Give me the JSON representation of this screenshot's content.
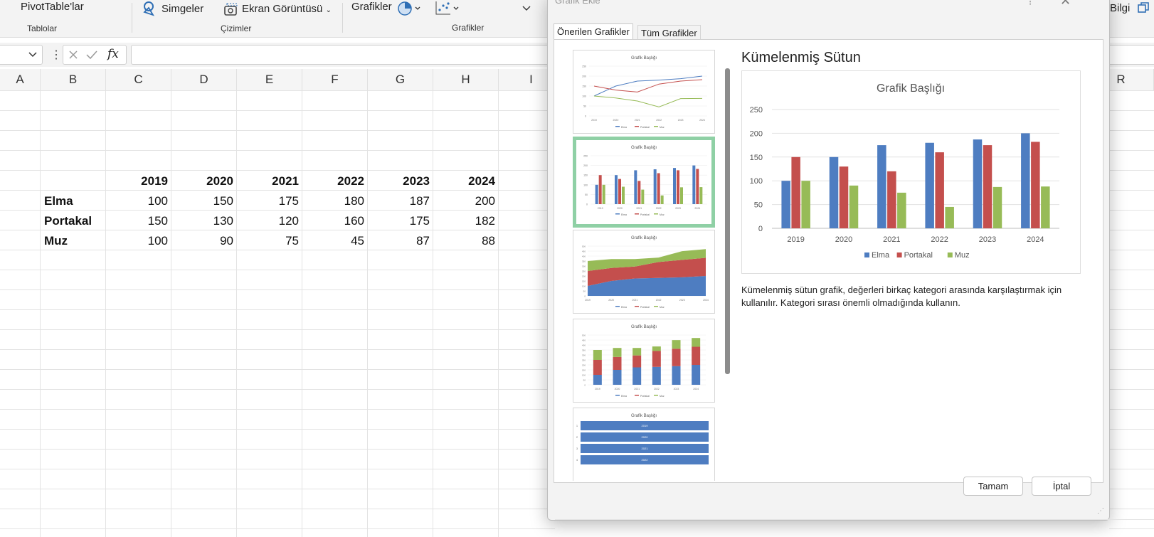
{
  "ribbon": {
    "pivot_label": "PivotTable'lar",
    "tables_group": "Tablolar",
    "icons_label": "Simgeler",
    "screenshot_label": "Ekran Görüntüsü",
    "drawings_group": "Çizimler",
    "charts_label": "Grafikler",
    "charts_group": "Grafikler",
    "info_label": "Bilgi"
  },
  "formula_bar": {
    "fx_label": "fx"
  },
  "grid": {
    "columns": [
      "A",
      "B",
      "C",
      "D",
      "E",
      "F",
      "G",
      "H",
      "I",
      "R"
    ],
    "years": [
      "2019",
      "2020",
      "2021",
      "2022",
      "2023",
      "2024"
    ],
    "rows": [
      {
        "label": "Elma",
        "values": [
          "100",
          "150",
          "175",
          "180",
          "187",
          "200"
        ]
      },
      {
        "label": "Portakal",
        "values": [
          "150",
          "130",
          "120",
          "160",
          "175",
          "182"
        ]
      },
      {
        "label": "Muz",
        "values": [
          "100",
          "90",
          "75",
          "45",
          "87",
          "88"
        ]
      }
    ]
  },
  "dialog": {
    "title": "Grafik Ekle",
    "tab_recommended": "Önerilen Grafikler",
    "tab_all": "Tüm Grafikler",
    "thumb_title": "Grafik Başlığı",
    "preview_title": "Kümelenmiş Sütun",
    "description": "Kümelenmiş sütun grafik, değerleri birkaç kategori arasında karşılaştırmak için kullanılır. Kategori sırası önemli olmadığında kullanın.",
    "ok_label": "Tamam",
    "cancel_label": "İptal"
  },
  "colors": {
    "elma": "#4e7dc1",
    "portakal": "#c44f4d",
    "muz": "#97bb57",
    "selected_border": "#8fd0a5"
  },
  "chart_data": {
    "type": "bar",
    "title": "Grafik Başlığı",
    "categories": [
      "2019",
      "2020",
      "2021",
      "2022",
      "2023",
      "2024"
    ],
    "series": [
      {
        "name": "Elma",
        "values": [
          100,
          150,
          175,
          180,
          187,
          200
        ]
      },
      {
        "name": "Portakal",
        "values": [
          150,
          130,
          120,
          160,
          175,
          182
        ]
      },
      {
        "name": "Muz",
        "values": [
          100,
          90,
          75,
          45,
          87,
          88
        ]
      }
    ],
    "ylim": [
      0,
      250
    ],
    "yticks": [
      "0",
      "50",
      "100",
      "150",
      "200",
      "250"
    ],
    "grid": true,
    "legend": "bottom"
  }
}
